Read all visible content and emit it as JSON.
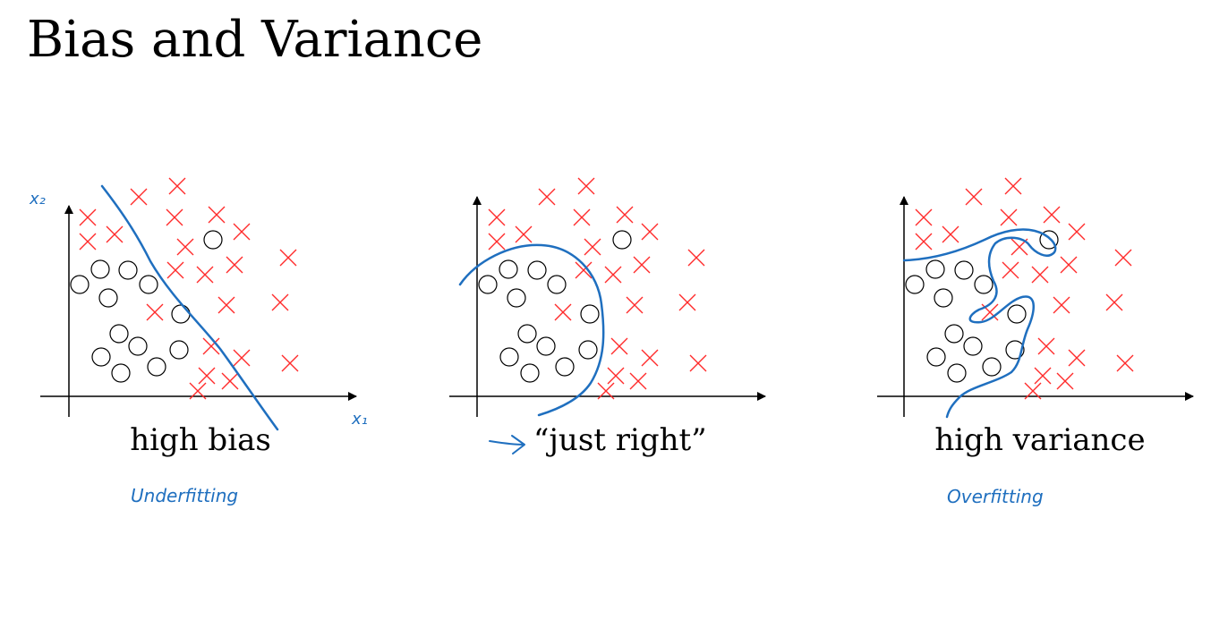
{
  "slide": {
    "title": "Bias and Variance",
    "accent_color": "#1f6fbf",
    "cross_color": "#ff2a2a",
    "circle_color": "#000000"
  },
  "panels": [
    {
      "label": "high bias",
      "annotation": "Underfitting",
      "axis_labels": {
        "x": "x1",
        "y": "x2"
      },
      "boundary": "straight line"
    },
    {
      "label": "“just right”",
      "annotation_marker": "arrow",
      "boundary": "smooth curve"
    },
    {
      "label": "high variance",
      "annotation": "Overfitting",
      "boundary": "wiggly curve"
    }
  ]
}
